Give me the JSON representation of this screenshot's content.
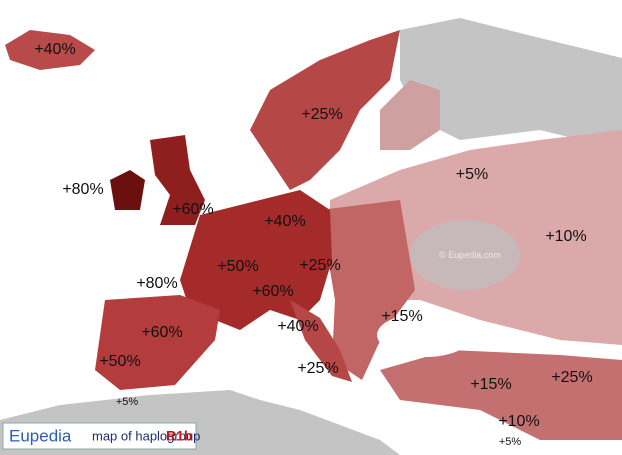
{
  "map": {
    "labels": [
      "+40%",
      "+25%",
      "+5%",
      "+80%",
      "+60%",
      "+40%",
      "+10%",
      "+50%",
      "+25%",
      "+80%",
      "+60%",
      "+15%",
      "+40%",
      "+60%",
      "+50%",
      "+25%",
      "+15%",
      "+25%",
      "+5%",
      "+10%",
      "+5%"
    ],
    "watermark": "© Eupedia.com"
  },
  "legend": {
    "brand": "Eupedia",
    "text": "map of haplogroup",
    "haplogroup": "R1b"
  }
}
